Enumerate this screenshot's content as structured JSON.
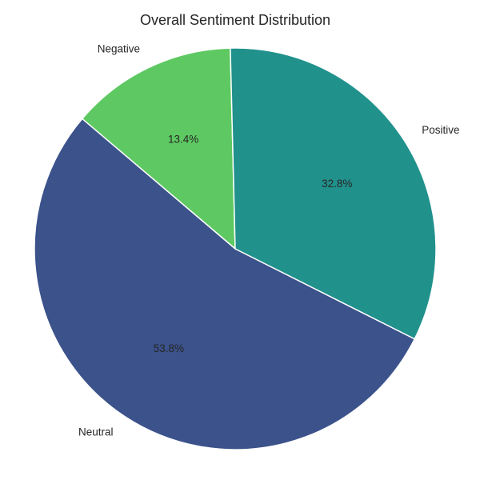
{
  "chart_data": {
    "type": "pie",
    "title": "Overall Sentiment Distribution",
    "start_angle_deg": 91.4,
    "direction": "counterclockwise",
    "slices": [
      {
        "label": "Negative",
        "value": 13.4,
        "value_label": "13.4%",
        "color": "#5ec962"
      },
      {
        "label": "Neutral",
        "value": 53.8,
        "value_label": "53.8%",
        "color": "#3b528b"
      },
      {
        "label": "Positive",
        "value": 32.8,
        "value_label": "32.8%",
        "color": "#21918c"
      }
    ],
    "legend": "none",
    "edge_color": "#ffffff"
  }
}
